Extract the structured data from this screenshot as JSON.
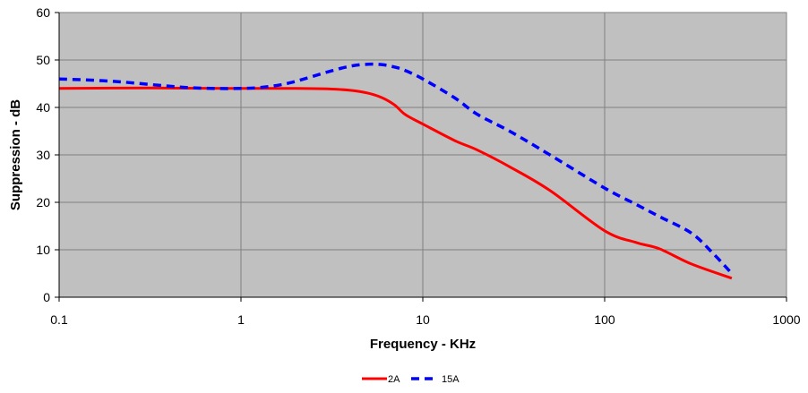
{
  "chart_data": {
    "type": "line",
    "xlabel": "Frequency - KHz",
    "ylabel": "Suppression - dB",
    "x_scale": "log",
    "xlim": [
      0.1,
      1000
    ],
    "ylim": [
      0,
      60
    ],
    "x_ticks": [
      0.1,
      1,
      10,
      100,
      1000
    ],
    "x_tick_labels": [
      "0.1",
      "1",
      "10",
      "100",
      "1000"
    ],
    "y_ticks": [
      0,
      10,
      20,
      30,
      40,
      50,
      60
    ],
    "y_tick_labels": [
      "0",
      "10",
      "20",
      "30",
      "40",
      "50",
      "60"
    ],
    "grid": true,
    "plot_background": "#c0c0c0",
    "legend_position": "bottom-center",
    "series": [
      {
        "name": "2A",
        "color": "#ff0000",
        "style": "solid",
        "x": [
          0.1,
          0.3,
          1,
          2,
          3,
          4,
          5,
          6,
          7,
          8,
          10,
          15,
          20,
          30,
          50,
          100,
          150,
          200,
          300,
          500
        ],
        "y": [
          44,
          44.1,
          44,
          44,
          43.9,
          43.6,
          43,
          42,
          40.5,
          38.5,
          36.5,
          33,
          31,
          27.5,
          22.5,
          14,
          11.5,
          10.2,
          7,
          4
        ]
      },
      {
        "name": "15A",
        "color": "#0000ff",
        "style": "dashed",
        "x": [
          0.1,
          0.2,
          0.5,
          1,
          1.5,
          2,
          3,
          4,
          5,
          6,
          7,
          8,
          10,
          15,
          20,
          30,
          50,
          100,
          150,
          200,
          300,
          400,
          500
        ],
        "y": [
          46,
          45.5,
          44.2,
          44,
          44.5,
          45.5,
          47.5,
          48.7,
          49.1,
          49,
          48.5,
          47.8,
          46,
          42,
          38.5,
          35,
          30,
          23,
          19.5,
          17,
          13.5,
          9,
          5
        ]
      }
    ]
  }
}
